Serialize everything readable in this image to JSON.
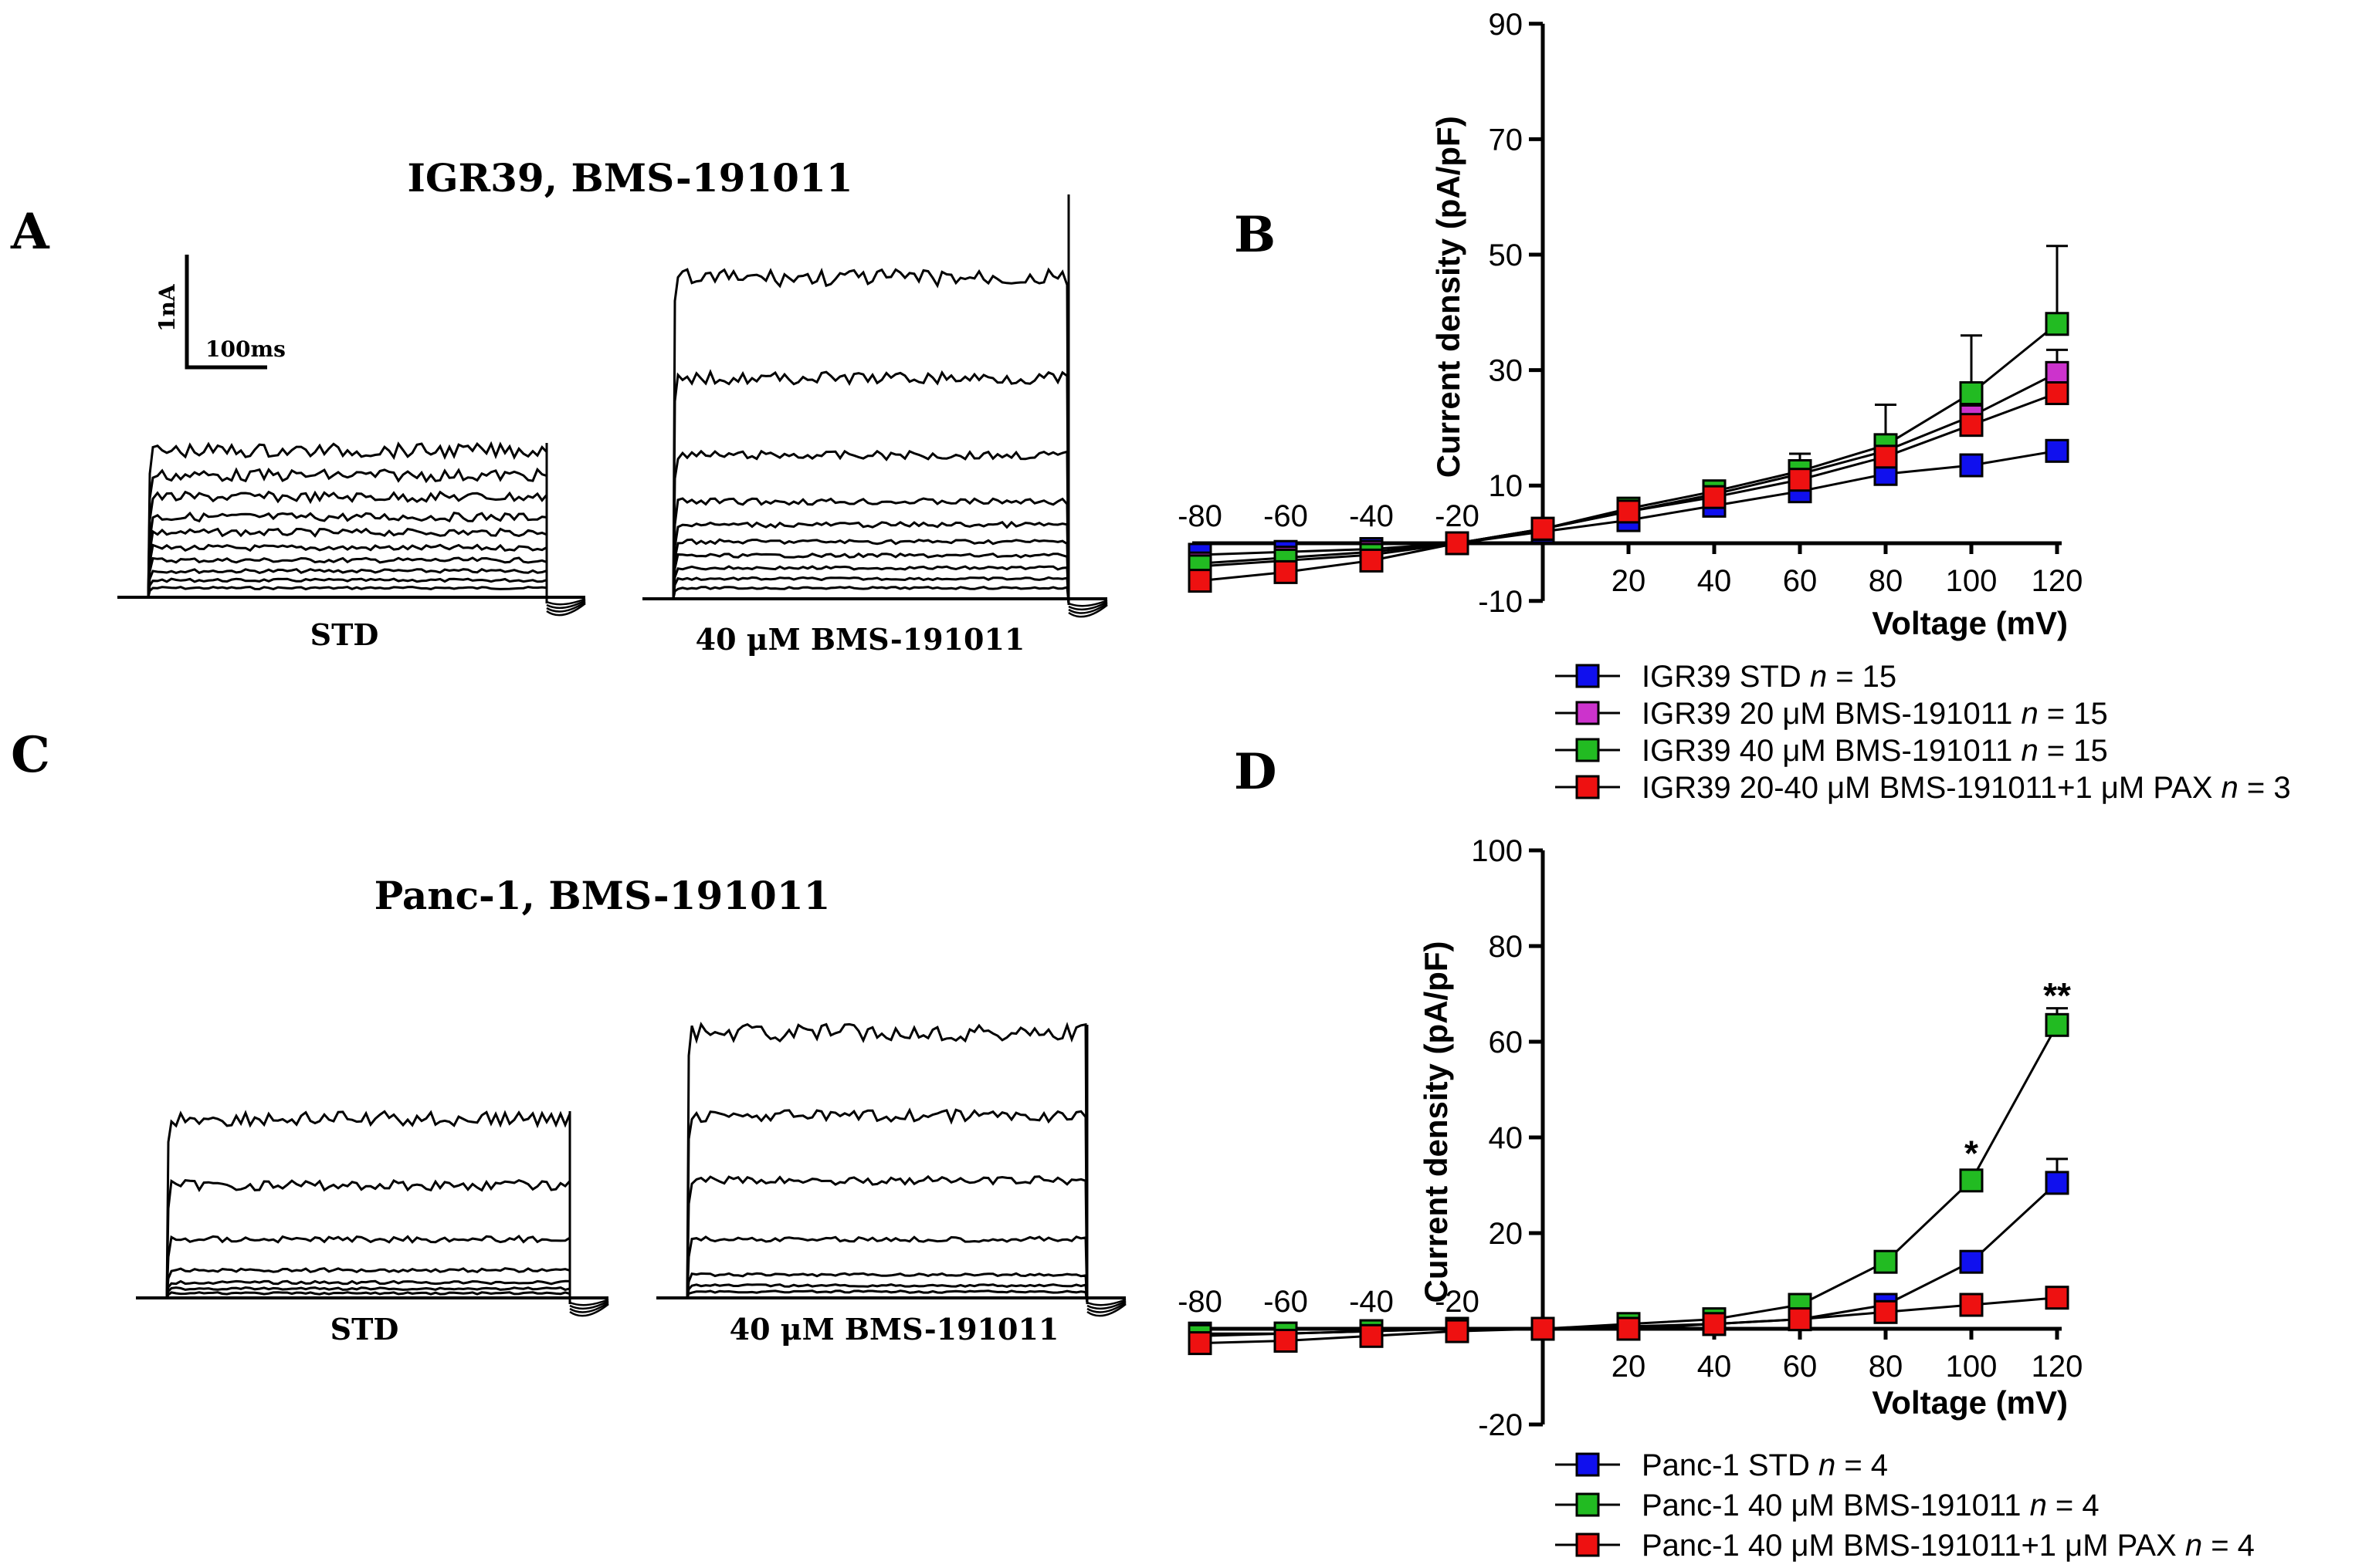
{
  "panel_labels": {
    "a": "A",
    "b": "B",
    "c": "C",
    "d": "D"
  },
  "traces": {
    "igr39_title": "IGR39, BMS-191011",
    "panc1_title": "Panc-1, BMS-191011",
    "scale_current": "1nA",
    "scale_time": "100ms",
    "igr39_std_label": "STD",
    "igr39_drug_label": "40 μM BMS-191011",
    "panc1_std_label": "STD",
    "panc1_drug_label": "40 μM BMS-191011"
  },
  "colors": {
    "blue": "#1010ee",
    "magenta": "#cc33cc",
    "green": "#22bb22",
    "red": "#ee1111"
  },
  "chart_data": [
    {
      "id": "B",
      "type": "line",
      "title": "",
      "xlabel": "Voltage (mV)",
      "ylabel": "Current density (pA/pF)",
      "xlim": [
        -80,
        120
      ],
      "ylim": [
        -10,
        90
      ],
      "xticks": [
        -80,
        -60,
        -40,
        -20,
        20,
        40,
        60,
        80,
        100,
        120
      ],
      "xtick_labels": [
        "-80",
        "-60",
        "-40",
        "-20",
        "20",
        "40",
        "60",
        "80",
        "100",
        "120"
      ],
      "yticks": [
        -10,
        10,
        30,
        50,
        70,
        90
      ],
      "ytick_labels": [
        "-10",
        "10",
        "30",
        "50",
        "70",
        "90"
      ],
      "x": [
        -80,
        -60,
        -40,
        -20,
        0,
        20,
        40,
        60,
        80,
        100,
        120
      ],
      "series": [
        {
          "name": "IGR39 STD",
          "n": "15",
          "color": "blue",
          "values": [
            -2,
            -1.5,
            -1,
            0,
            2,
            4,
            6.5,
            9,
            12,
            13.5,
            16
          ],
          "errors": [
            0,
            0,
            0,
            0,
            0,
            0,
            0,
            0,
            0,
            0,
            0
          ]
        },
        {
          "name": "IGR39 20 μM BMS-191011",
          "n": "15",
          "color": "magenta",
          "values": [
            -3.5,
            -2.5,
            -1.5,
            0,
            2.5,
            5.5,
            8.5,
            12,
            16,
            22,
            29.5
          ],
          "errors": [
            0,
            0,
            0,
            0,
            0,
            0,
            0,
            0,
            0,
            0,
            4
          ]
        },
        {
          "name": "IGR39 40 μM BMS-191011",
          "n": "15",
          "color": "green",
          "values": [
            -4,
            -3,
            -2,
            0,
            2.5,
            6,
            9,
            12.5,
            17,
            26,
            38
          ],
          "errors": [
            0,
            0,
            0,
            0,
            0,
            0,
            0,
            3,
            7,
            10,
            13.5
          ]
        },
        {
          "name": "IGR39 20-40 μM BMS-191011+1 μM PAX",
          "n": "3",
          "color": "red",
          "values": [
            -6.5,
            -5,
            -3,
            0,
            2.5,
            5.5,
            8,
            11,
            15,
            20.5,
            26
          ],
          "errors": [
            0,
            0,
            0,
            0,
            0,
            0,
            0,
            0,
            0,
            0,
            0
          ]
        }
      ],
      "annotations": []
    },
    {
      "id": "D",
      "type": "line",
      "title": "",
      "xlabel": "Voltage (mV)",
      "ylabel": "Current density (pA/pF)",
      "xlim": [
        -80,
        120
      ],
      "ylim": [
        -20,
        100
      ],
      "xticks": [
        -80,
        -60,
        -40,
        -20,
        20,
        40,
        60,
        80,
        100,
        120
      ],
      "xtick_labels": [
        "-80",
        "-60",
        "-40",
        "-20",
        "20",
        "40",
        "60",
        "80",
        "100",
        "120"
      ],
      "yticks": [
        -20,
        20,
        40,
        60,
        80,
        100
      ],
      "ytick_labels": [
        "-20",
        "20",
        "40",
        "60",
        "80",
        "100"
      ],
      "x": [
        -80,
        -60,
        -40,
        -20,
        0,
        20,
        40,
        60,
        80,
        100,
        120
      ],
      "series": [
        {
          "name": "Panc-1 STD",
          "n": "4",
          "color": "blue",
          "values": [
            -1,
            -1,
            -0.5,
            0,
            0,
            0.5,
            1,
            2,
            5,
            14,
            30.5
          ],
          "errors": [
            0,
            0,
            0,
            0,
            0,
            0,
            0,
            0,
            0,
            0,
            5
          ]
        },
        {
          "name": "Panc-1 40 μM BMS-191011",
          "n": "4",
          "color": "green",
          "values": [
            -1.5,
            -1,
            -0.5,
            0,
            0,
            1,
            2,
            5,
            14,
            31,
            63.5
          ],
          "errors": [
            0,
            0,
            0,
            0,
            0,
            0,
            0,
            0,
            0,
            0,
            3.5
          ]
        },
        {
          "name": "Panc-1 40 μM BMS-191011+1 μM PAX",
          "n": "4",
          "color": "red",
          "values": [
            -3,
            -2.5,
            -1.5,
            -0.5,
            0,
            0,
            1,
            2,
            3.5,
            5,
            6.5
          ],
          "errors": [
            0,
            0,
            0,
            0,
            0,
            0,
            0,
            0,
            0,
            0,
            0
          ]
        }
      ],
      "annotations": [
        {
          "text": "*",
          "x": 100,
          "y": 37
        },
        {
          "text": "**",
          "x": 120,
          "y": 70
        }
      ]
    }
  ]
}
